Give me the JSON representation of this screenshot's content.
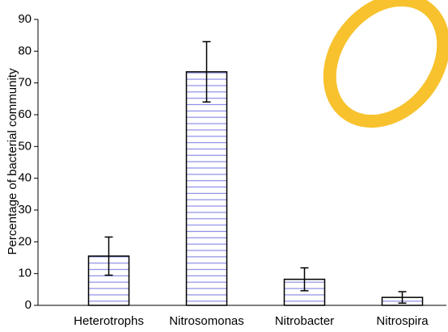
{
  "chart_data": {
    "type": "bar",
    "y_label": "Percentage of bacterial community",
    "categories": [
      "Heterotrophs",
      "Nitrosomonas",
      "Nitrobacter",
      "Nitrospira"
    ],
    "values": [
      15.5,
      73.5,
      8.2,
      2.5
    ],
    "errors": [
      6,
      9.5,
      3.6,
      1.8
    ],
    "color": "#8c8ce6",
    "ylim": [
      0,
      90
    ],
    "yticks": [
      0,
      10,
      20,
      30,
      40,
      50,
      60,
      70,
      80,
      90
    ]
  }
}
